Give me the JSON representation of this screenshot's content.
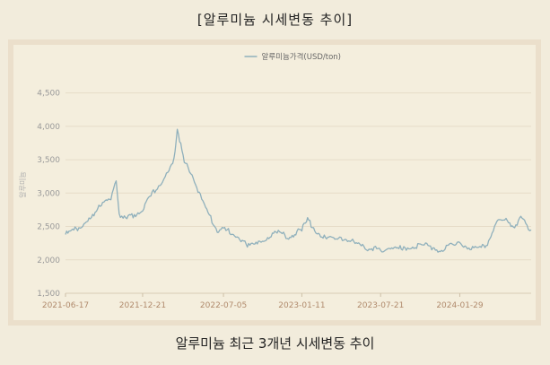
{
  "title": "[알루미늄 시세변동 추이]",
  "caption": "알루미늄 최근 3개년 시세변동 추이",
  "chart_data": {
    "type": "line",
    "title": "",
    "xlabel": "",
    "ylabel": "알루미늄",
    "ylim": [
      1500,
      4750
    ],
    "yticks": [
      "1,500",
      "2,000",
      "2,500",
      "3,000",
      "3,500",
      "4,000",
      "4,500"
    ],
    "xticks": [
      "2021-06-17",
      "2021-12-21",
      "2022-07-05",
      "2023-01-11",
      "2023-07-21",
      "2024-01-29"
    ],
    "x_range": [
      "2021-06-17",
      "2024-07-20"
    ],
    "grid": "horizontal",
    "legend_position": "top-center",
    "series": [
      {
        "name": "알루미늄가격(USD/ton)",
        "color": "#8fb0bc",
        "x": [
          "2021-06-17",
          "2021-07-10",
          "2021-08-01",
          "2021-08-25",
          "2021-09-15",
          "2021-10-05",
          "2021-10-18",
          "2021-10-25",
          "2021-11-10",
          "2021-12-01",
          "2021-12-21",
          "2022-01-10",
          "2022-02-01",
          "2022-02-20",
          "2022-03-07",
          "2022-03-15",
          "2022-04-01",
          "2022-04-20",
          "2022-05-10",
          "2022-06-01",
          "2022-06-20",
          "2022-07-05",
          "2022-08-01",
          "2022-09-01",
          "2022-09-28",
          "2022-10-20",
          "2022-11-15",
          "2022-12-10",
          "2023-01-11",
          "2023-01-25",
          "2023-02-20",
          "2023-03-15",
          "2023-04-10",
          "2023-05-05",
          "2023-06-01",
          "2023-07-21",
          "2023-08-20",
          "2023-09-15",
          "2023-10-10",
          "2023-11-10",
          "2023-12-10",
          "2024-01-05",
          "2024-01-29",
          "2024-02-20",
          "2024-03-15",
          "2024-04-05",
          "2024-04-25",
          "2024-05-20",
          "2024-06-10",
          "2024-06-25",
          "2024-07-10",
          "2024-07-20"
        ],
        "y": [
          2380,
          2450,
          2550,
          2650,
          2870,
          2940,
          3150,
          2700,
          2600,
          2680,
          2750,
          2950,
          3150,
          3300,
          3480,
          3980,
          3450,
          3300,
          2950,
          2650,
          2450,
          2450,
          2400,
          2200,
          2250,
          2350,
          2400,
          2350,
          2450,
          2600,
          2400,
          2300,
          2350,
          2300,
          2200,
          2150,
          2150,
          2180,
          2200,
          2220,
          2150,
          2200,
          2230,
          2200,
          2150,
          2250,
          2550,
          2600,
          2500,
          2650,
          2520,
          2450
        ]
      }
    ]
  }
}
